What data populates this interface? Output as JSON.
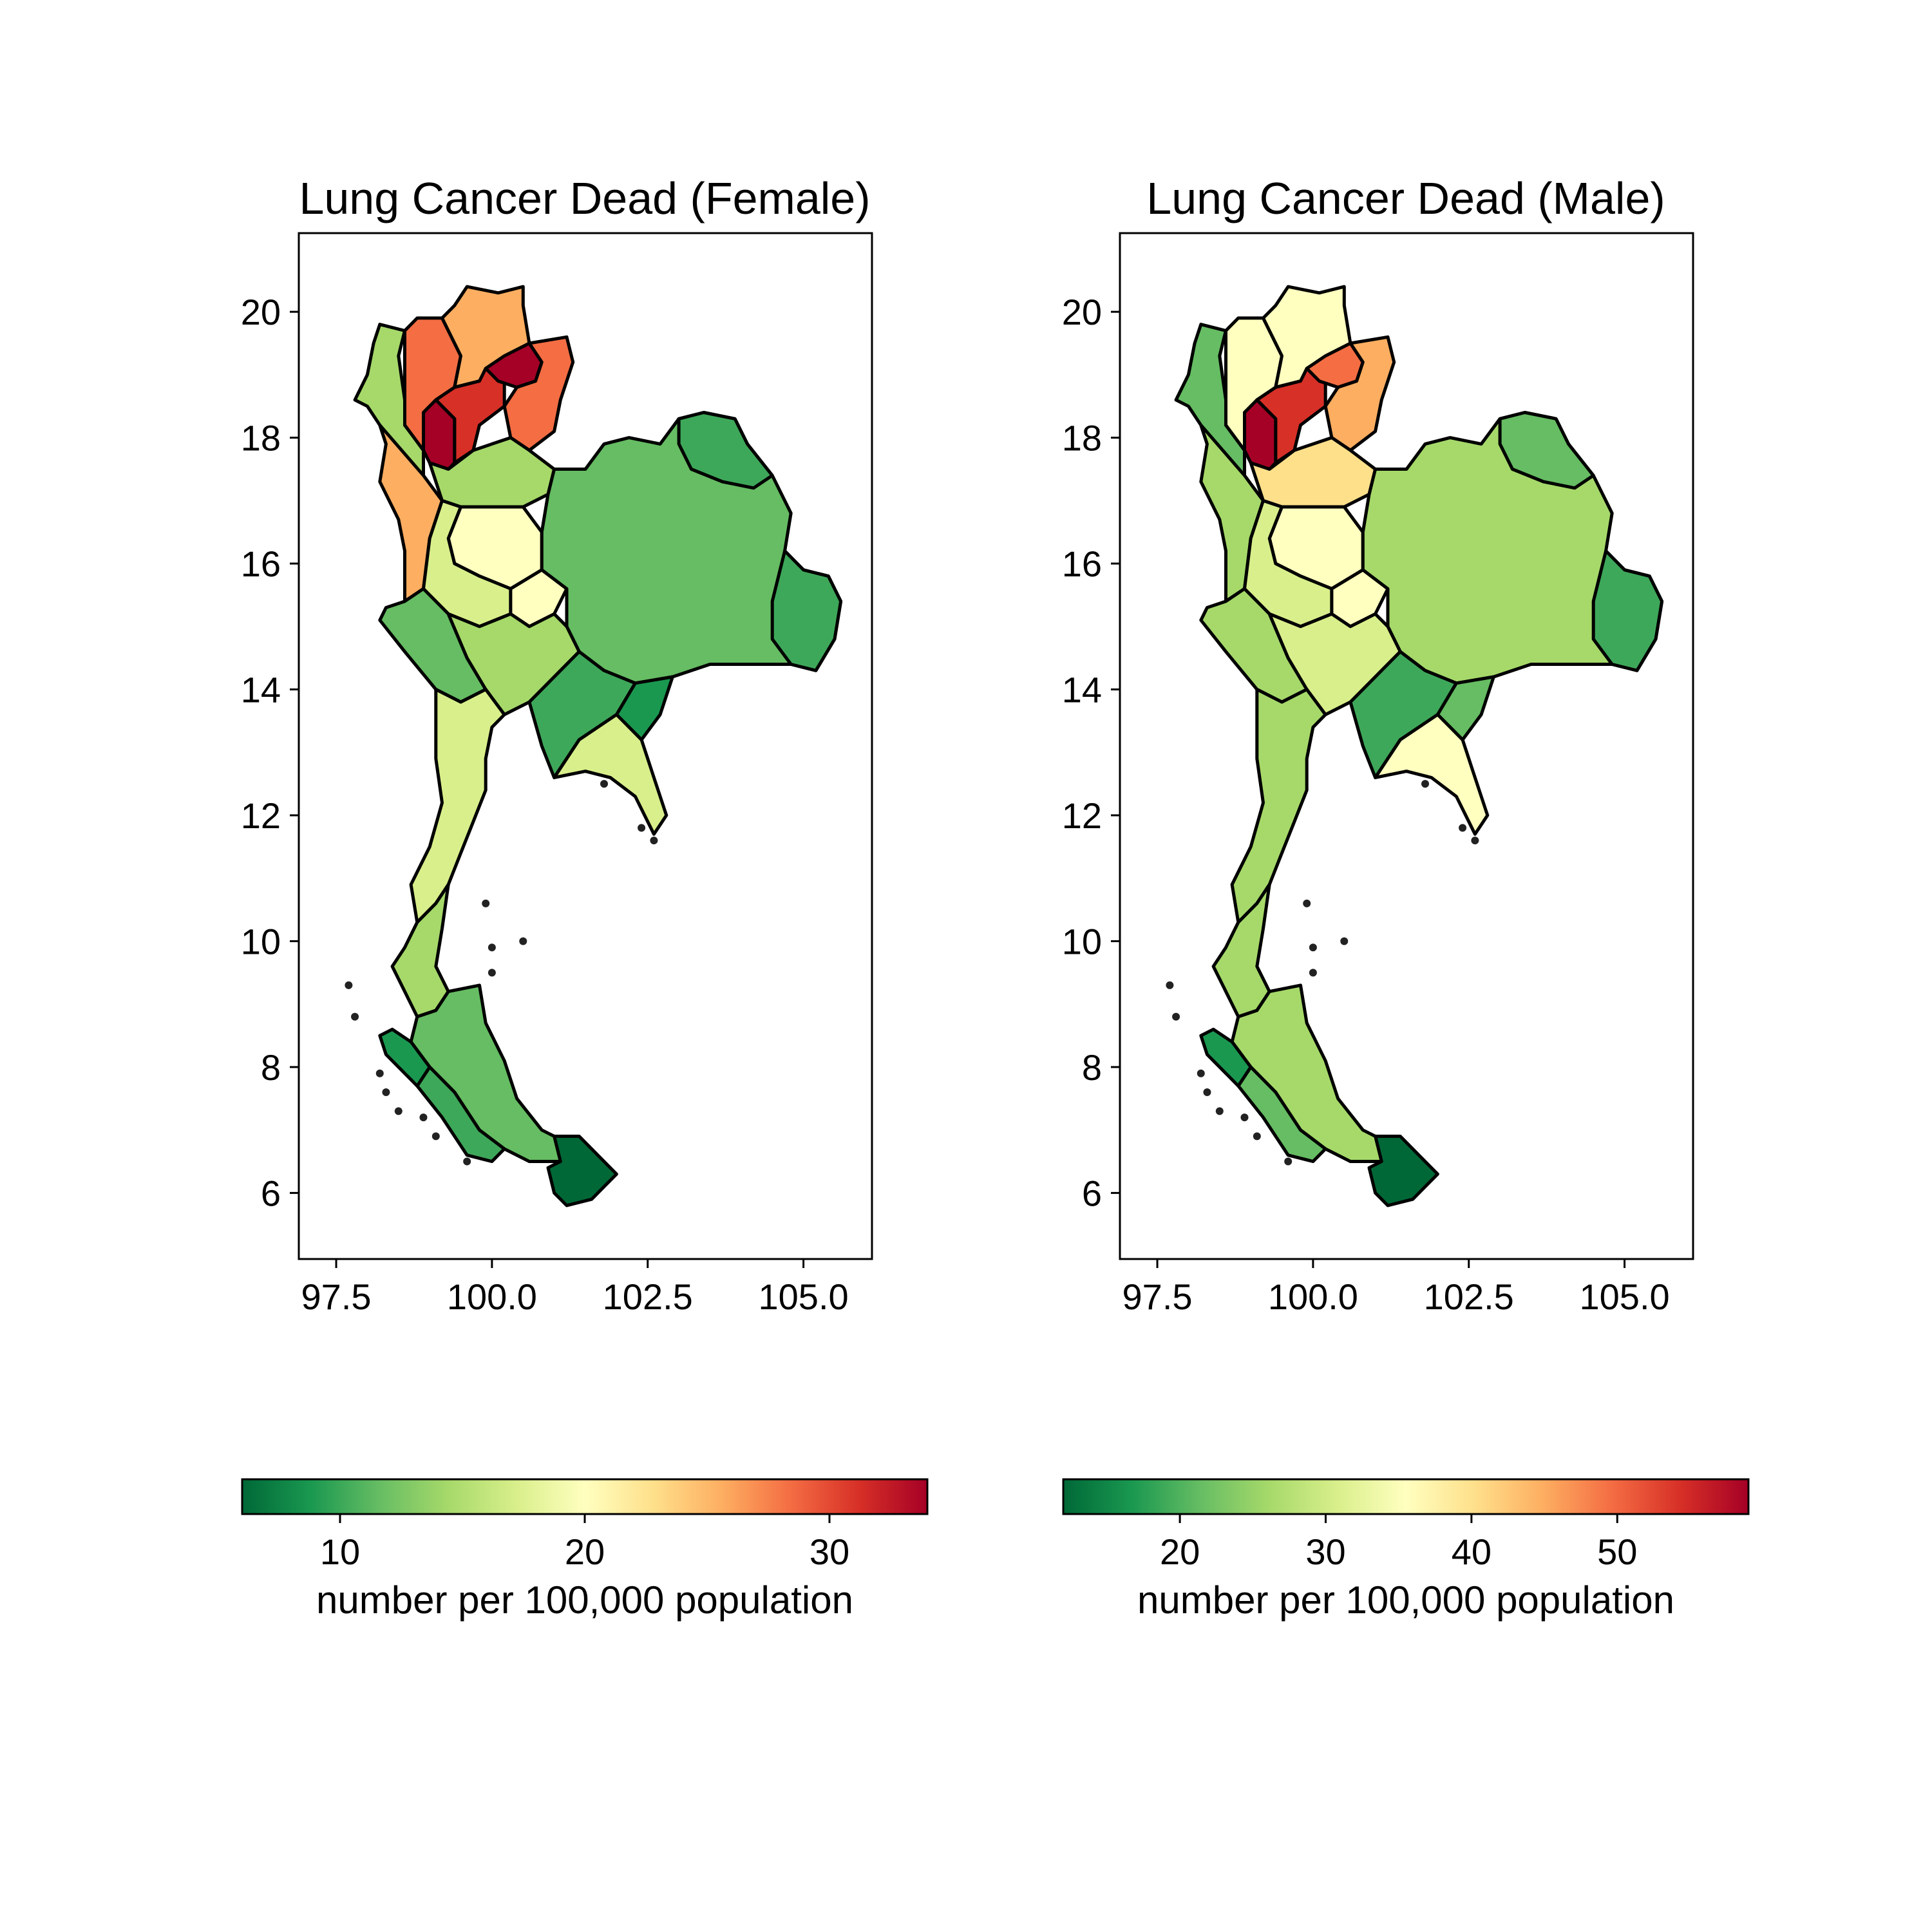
{
  "figure": {
    "panels": [
      {
        "id": "female",
        "title": "Lung Cancer Dead (Female)",
        "x_ticks": [
          "97.5",
          "100.0",
          "102.5",
          "105.0"
        ],
        "y_ticks": [
          "20",
          "18",
          "16",
          "14",
          "12",
          "10",
          "8",
          "6"
        ],
        "colorbar": {
          "label": "number per 100,000 population",
          "ticks": [
            "10",
            "20",
            "30"
          ],
          "range": [
            6,
            34
          ],
          "colormap": "RdYlGn_r"
        }
      },
      {
        "id": "male",
        "title": "Lung Cancer Dead (Male)",
        "x_ticks": [
          "97.5",
          "100.0",
          "102.5",
          "105.0"
        ],
        "y_ticks": [
          "20",
          "18",
          "16",
          "14",
          "12",
          "10",
          "8",
          "6"
        ],
        "colorbar": {
          "label": "number per 100,000 population",
          "ticks": [
            "20",
            "30",
            "40",
            "50"
          ],
          "range": [
            12,
            59
          ],
          "colormap": "RdYlGn_r"
        }
      }
    ]
  },
  "map_data": {
    "type": "choropleth",
    "region": "Thailand provinces",
    "x_range": [
      96.9,
      106.1
    ],
    "y_range": [
      4.95,
      21.25
    ],
    "colors": {
      "c0": "#006837",
      "c1": "#1a9850",
      "c2": "#3ea85a",
      "c3": "#66bd63",
      "c4": "#a6d96a",
      "c5": "#d9ef8b",
      "c6": "#ffffbf",
      "c7": "#fee08b",
      "c8": "#fdae61",
      "c9": "#f46d43",
      "c10": "#d73027",
      "c11": "#a50026"
    },
    "female_regions": [
      {
        "name": "north-west-mountains",
        "color": "c4"
      },
      {
        "name": "north-west-1",
        "color": "c9"
      },
      {
        "name": "north-top",
        "color": "c8"
      },
      {
        "name": "north-center",
        "color": "c10"
      },
      {
        "name": "north-peak",
        "color": "c11"
      },
      {
        "name": "north-east-upper",
        "color": "c9"
      },
      {
        "name": "north-narrow",
        "color": "c11"
      },
      {
        "name": "west-strip",
        "color": "c8"
      },
      {
        "name": "lower-north-1",
        "color": "c4"
      },
      {
        "name": "lower-north-2",
        "color": "c6"
      },
      {
        "name": "central-1",
        "color": "c5"
      },
      {
        "name": "central-2",
        "color": "c6"
      },
      {
        "name": "northeast-big",
        "color": "c3"
      },
      {
        "name": "northeast-top",
        "color": "c2"
      },
      {
        "name": "northeast-east",
        "color": "c2"
      },
      {
        "name": "west-kanchanaburi",
        "color": "c3"
      },
      {
        "name": "central-3",
        "color": "c4"
      },
      {
        "name": "east-1",
        "color": "c2"
      },
      {
        "name": "east-2",
        "color": "c1"
      },
      {
        "name": "east-coast",
        "color": "c5"
      },
      {
        "name": "peninsula-1",
        "color": "c5"
      },
      {
        "name": "peninsula-2",
        "color": "c4"
      },
      {
        "name": "south-1",
        "color": "c3"
      },
      {
        "name": "south-2",
        "color": "c2"
      },
      {
        "name": "south-phang-nga",
        "color": "c1"
      },
      {
        "name": "south-deep",
        "color": "c0"
      }
    ],
    "male_regions": [
      {
        "name": "north-west-mountains",
        "color": "c3"
      },
      {
        "name": "north-west-1",
        "color": "c6"
      },
      {
        "name": "north-top",
        "color": "c6"
      },
      {
        "name": "north-center",
        "color": "c10"
      },
      {
        "name": "north-peak",
        "color": "c9"
      },
      {
        "name": "north-east-upper",
        "color": "c8"
      },
      {
        "name": "north-narrow",
        "color": "c11"
      },
      {
        "name": "west-strip",
        "color": "c4"
      },
      {
        "name": "lower-north-1",
        "color": "c7"
      },
      {
        "name": "lower-north-2",
        "color": "c6"
      },
      {
        "name": "central-1",
        "color": "c5"
      },
      {
        "name": "central-2",
        "color": "c6"
      },
      {
        "name": "northeast-big",
        "color": "c4"
      },
      {
        "name": "northeast-top",
        "color": "c3"
      },
      {
        "name": "northeast-east",
        "color": "c2"
      },
      {
        "name": "west-kanchanaburi",
        "color": "c4"
      },
      {
        "name": "central-3",
        "color": "c5"
      },
      {
        "name": "east-1",
        "color": "c2"
      },
      {
        "name": "east-2",
        "color": "c3"
      },
      {
        "name": "east-coast",
        "color": "c6"
      },
      {
        "name": "peninsula-1",
        "color": "c4"
      },
      {
        "name": "peninsula-2",
        "color": "c4"
      },
      {
        "name": "south-1",
        "color": "c4"
      },
      {
        "name": "south-2",
        "color": "c3"
      },
      {
        "name": "south-phang-nga",
        "color": "c1"
      },
      {
        "name": "south-deep",
        "color": "c0"
      }
    ]
  }
}
